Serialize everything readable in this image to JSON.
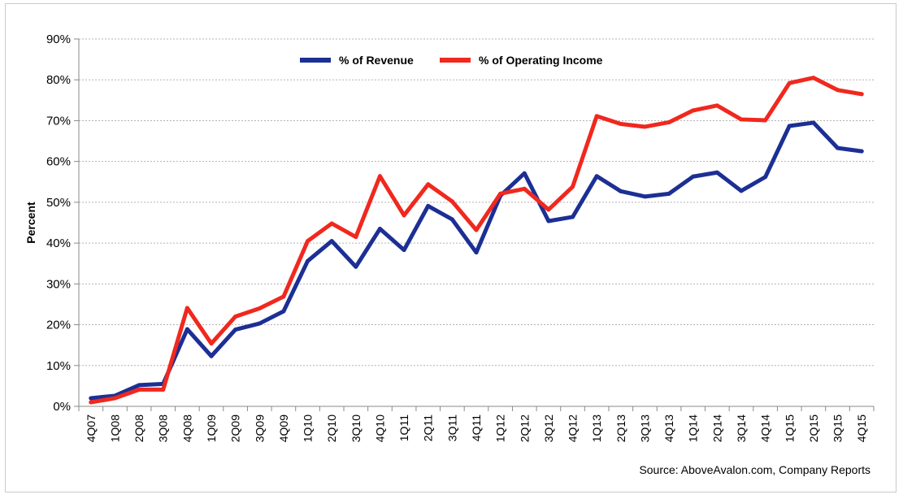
{
  "chart_data": {
    "type": "line",
    "ylabel": "Percent",
    "ylim": [
      0,
      90
    ],
    "yticks": [
      "0%",
      "10%",
      "20%",
      "30%",
      "40%",
      "50%",
      "60%",
      "70%",
      "80%",
      "90%"
    ],
    "grid": true,
    "legend_position": "top-center",
    "categories": [
      "4Q07",
      "1Q08",
      "2Q08",
      "3Q08",
      "4Q08",
      "1Q09",
      "2Q09",
      "3Q09",
      "4Q09",
      "1Q10",
      "2Q10",
      "3Q10",
      "4Q10",
      "1Q11",
      "2Q11",
      "3Q11",
      "4Q11",
      "1Q12",
      "2Q12",
      "3Q12",
      "4Q12",
      "1Q13",
      "2Q13",
      "3Q13",
      "4Q13",
      "1Q14",
      "2Q14",
      "3Q14",
      "4Q14",
      "1Q15",
      "2Q15",
      "3Q15",
      "4Q15"
    ],
    "series": [
      {
        "name": "% of Revenue",
        "color": "#1c2f94",
        "values": [
          2,
          2.6,
          5.2,
          5.5,
          18.9,
          12.3,
          18.8,
          20.3,
          23.3,
          35.6,
          40.5,
          34.2,
          43.5,
          38.3,
          49.1,
          45.8,
          37.7,
          51.6,
          57.1,
          45.4,
          46.4,
          56.4,
          52.7,
          51.4,
          52.1,
          56.3,
          57.3,
          52.8,
          56.2,
          68.7,
          69.5,
          63.3,
          62.5
        ]
      },
      {
        "name": "% of Operating Income",
        "color": "#f0281e",
        "values": [
          1,
          2,
          4.1,
          4.1,
          24.1,
          15.4,
          22,
          24,
          26.9,
          40.5,
          44.8,
          41.5,
          56.4,
          46.8,
          54.4,
          50.2,
          43.2,
          52.1,
          53.3,
          48.2,
          53.8,
          71.1,
          69.2,
          68.5,
          69.6,
          72.5,
          73.7,
          70.3,
          70.1,
          79.2,
          80.5,
          77.5,
          76.5
        ]
      }
    ],
    "source": "Source: AboveAvalon.com, Company Reports"
  }
}
